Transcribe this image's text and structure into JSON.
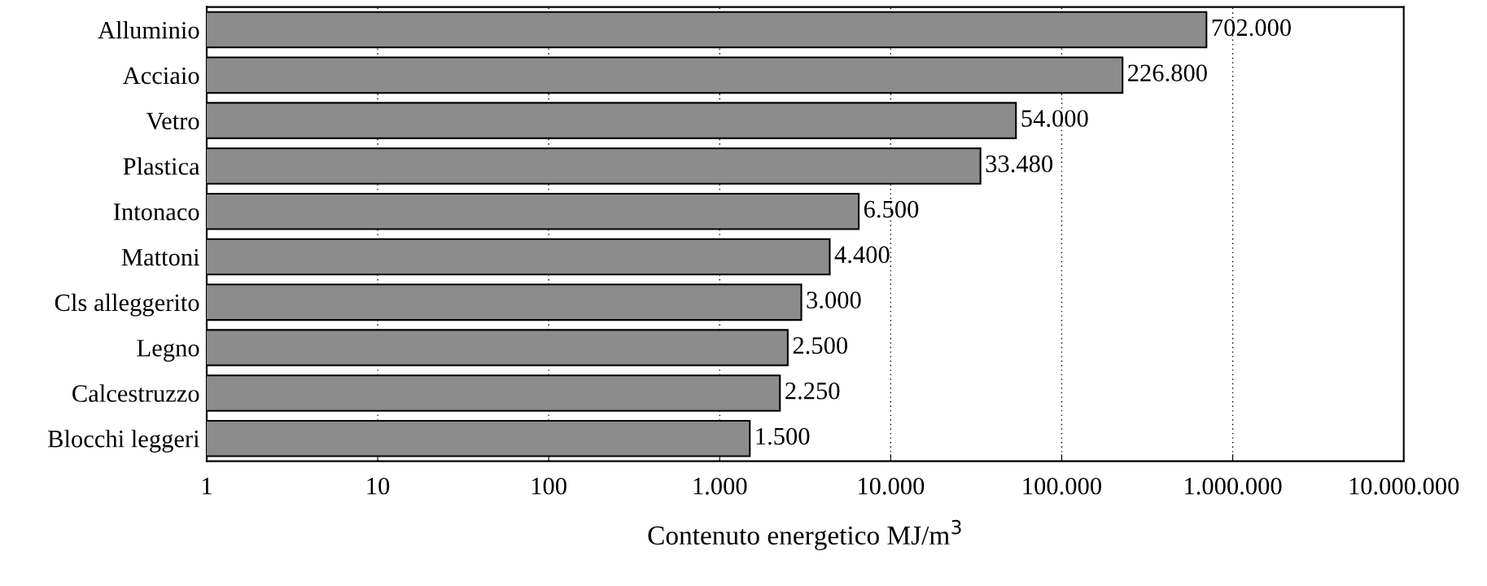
{
  "chart_data": {
    "type": "bar",
    "orientation": "horizontal",
    "log": "x",
    "xlabel": "Contenuto energetico MJ/m$^{3}$",
    "categories": [
      "Alluminio",
      "Acciaio",
      "Vetro",
      "Plastica",
      "Intonaco",
      "Mattoni",
      "Cls alleggerito",
      "Legno",
      "Calcestruzzo",
      "Blocchi leggeri"
    ],
    "values": [
      702000,
      226800,
      54000,
      33480,
      6500,
      4400,
      3000,
      2500,
      2250,
      1500
    ],
    "value_labels": [
      "702.000",
      "226.800",
      "54.000",
      "33.480",
      "6.500",
      "4.400",
      "3.000",
      "2.500",
      "2.250",
      "1.500"
    ],
    "color": "#8c8c8c",
    "xlim": [
      1,
      10000000
    ],
    "xticks": [
      1,
      10,
      100,
      {
        "value": 1000,
        "label": "1.000"
      },
      {
        "value": 10000,
        "label": "10.000"
      },
      {
        "value": 100000,
        "label": "100.000"
      },
      {
        "value": 1000000,
        "label": "1.000.000"
      },
      {
        "value": 10000000,
        "label": "10.000.000"
      }
    ],
    "grid": "x"
  }
}
